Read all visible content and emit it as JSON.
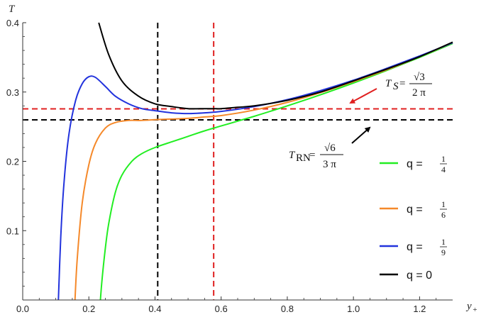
{
  "chart_data": {
    "type": "line",
    "title": "",
    "xlabel": "y",
    "xlabel_sub": "+",
    "ylabel": "T",
    "xlim": [
      0,
      1.3
    ],
    "ylim": [
      0,
      0.4
    ],
    "xticks": [
      0.0,
      0.2,
      0.4,
      0.6,
      0.8,
      1.0,
      1.2
    ],
    "xtick_labels": [
      "0.0",
      "0.2",
      "0.4",
      "0.6",
      "0.8",
      "1.0",
      "1.2"
    ],
    "yticks": [
      0.1,
      0.2,
      0.3,
      0.4
    ],
    "ytick_labels": [
      "0.1",
      "0.2",
      "0.3",
      "0.4"
    ],
    "grid": false,
    "legend_position": "right",
    "series": [
      {
        "name": "q = 1/4",
        "name_prefix": "q =",
        "frac_num": "1",
        "frac_den": "4",
        "color": "#22ee22",
        "x": [
          0.235,
          0.24,
          0.25,
          0.26,
          0.28,
          0.3,
          0.33,
          0.36,
          0.4,
          0.45,
          0.5,
          0.55,
          0.6,
          0.65,
          0.7,
          0.8,
          0.9,
          1.0,
          1.1,
          1.2,
          1.3
        ],
        "y": [
          0.0,
          0.03,
          0.075,
          0.11,
          0.155,
          0.18,
          0.2,
          0.211,
          0.22,
          0.228,
          0.236,
          0.244,
          0.251,
          0.258,
          0.265,
          0.28,
          0.296,
          0.313,
          0.331,
          0.35,
          0.37
        ]
      },
      {
        "name": "q = 1/6",
        "name_prefix": "q =",
        "frac_num": "1",
        "frac_den": "6",
        "color": "#f5892a",
        "x": [
          0.158,
          0.165,
          0.18,
          0.2,
          0.22,
          0.25,
          0.28,
          0.32,
          0.36,
          0.4,
          0.45,
          0.5,
          0.55,
          0.6,
          0.7,
          0.8,
          0.9,
          1.0,
          1.1,
          1.2,
          1.3
        ],
        "y": [
          0.0,
          0.06,
          0.14,
          0.195,
          0.226,
          0.248,
          0.256,
          0.259,
          0.259,
          0.26,
          0.261,
          0.262,
          0.264,
          0.266,
          0.274,
          0.285,
          0.299,
          0.315,
          0.332,
          0.351,
          0.371
        ]
      },
      {
        "name": "q = 1/9",
        "name_prefix": "q =",
        "frac_num": "1",
        "frac_den": "9",
        "color": "#2233dd",
        "x": [
          0.108,
          0.115,
          0.125,
          0.14,
          0.16,
          0.18,
          0.2,
          0.22,
          0.25,
          0.28,
          0.32,
          0.36,
          0.4,
          0.45,
          0.5,
          0.55,
          0.6,
          0.7,
          0.8,
          0.9,
          1.0,
          1.1,
          1.2,
          1.3
        ],
        "y": [
          0.0,
          0.09,
          0.17,
          0.24,
          0.288,
          0.312,
          0.322,
          0.321,
          0.308,
          0.294,
          0.283,
          0.276,
          0.273,
          0.27,
          0.269,
          0.27,
          0.272,
          0.279,
          0.289,
          0.302,
          0.317,
          0.334,
          0.352,
          0.371
        ]
      },
      {
        "name": "q = 0",
        "name_prefix": "q = 0",
        "frac_num": "",
        "frac_den": "",
        "color": "#000000",
        "x": [
          0.23,
          0.26,
          0.3,
          0.35,
          0.4,
          0.45,
          0.5,
          0.55,
          0.5774,
          0.6,
          0.65,
          0.7,
          0.8,
          0.9,
          1.0,
          1.1,
          1.2,
          1.3
        ],
        "y": [
          0.4,
          0.354,
          0.316,
          0.294,
          0.283,
          0.279,
          0.276,
          0.276,
          0.276,
          0.276,
          0.278,
          0.28,
          0.288,
          0.3,
          0.316,
          0.333,
          0.351,
          0.372
        ]
      }
    ],
    "reference_lines": {
      "horizontal": [
        {
          "name": "T_S",
          "y": 0.2757,
          "color": "#e02020"
        },
        {
          "name": "T_RN",
          "y": 0.2599,
          "color": "#000000"
        }
      ],
      "vertical": [
        {
          "x": 0.4082,
          "color": "#000000"
        },
        {
          "x": 0.5774,
          "color": "#e02020"
        }
      ]
    },
    "annotations": {
      "ts": {
        "sym": "T",
        "sub": "S",
        "eq": "=",
        "num": "√3",
        "den": "2 π",
        "arrow_color": "#e02020"
      },
      "trn": {
        "sym": "T",
        "sub": "RN",
        "eq": "=",
        "num": "√6",
        "den": "3 π",
        "arrow_color": "#000000"
      }
    }
  }
}
